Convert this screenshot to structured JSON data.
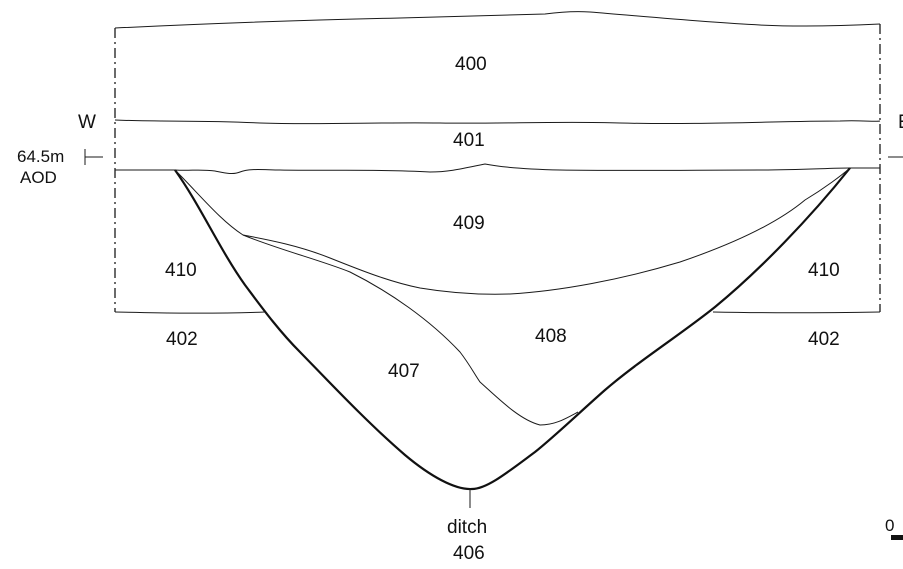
{
  "section": {
    "west_label": "W",
    "east_label": "E",
    "datum_value": "64.5m",
    "datum_unit": "AOD",
    "scale_zero": "0"
  },
  "contexts": [
    {
      "id": "c400",
      "label": "400"
    },
    {
      "id": "c401",
      "label": "401"
    },
    {
      "id": "c409",
      "label": "409"
    },
    {
      "id": "c410-west",
      "label": "410"
    },
    {
      "id": "c410-east",
      "label": "410"
    },
    {
      "id": "c402-west",
      "label": "402"
    },
    {
      "id": "c402-east",
      "label": "402"
    },
    {
      "id": "c408",
      "label": "408"
    },
    {
      "id": "c407",
      "label": "407"
    }
  ],
  "feature": {
    "type": "ditch",
    "number": "406"
  },
  "colors": {
    "line": "#111111",
    "background": "#ffffff"
  }
}
